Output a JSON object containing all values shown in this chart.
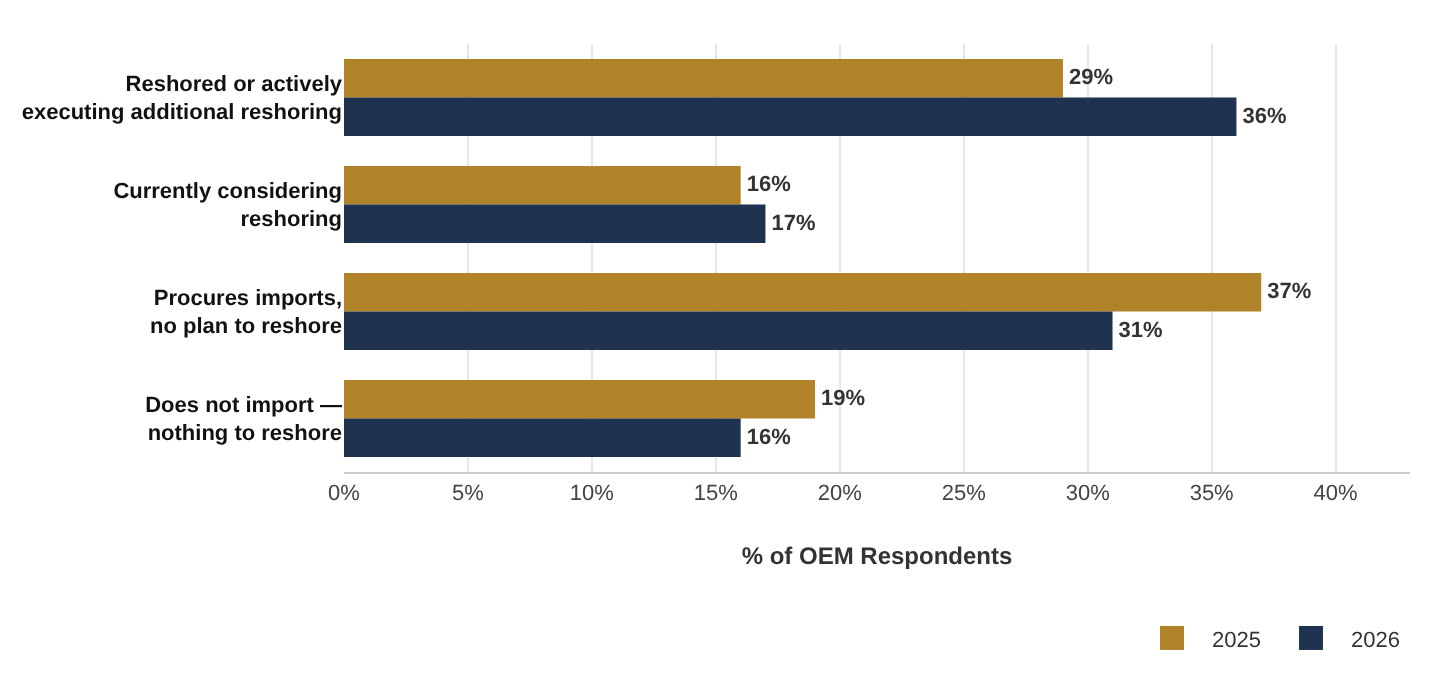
{
  "chart_data": {
    "type": "bar",
    "orientation": "horizontal",
    "xlabel": "% of OEM Respondents",
    "categories": [
      "Reshored or actively\nexecuting additional reshoring",
      "Currently considering\nreshoring",
      "Procures imports,\nno plan to reshore",
      "Does not import —\nnothing to reshore"
    ],
    "series": [
      {
        "name": "2025",
        "color": "#b08328",
        "values": [
          29,
          16,
          37,
          19
        ],
        "value_labels": [
          "29%",
          "16%",
          "37%",
          "19%"
        ]
      },
      {
        "name": "2026",
        "color": "#1f3250",
        "values": [
          36,
          17,
          31,
          16
        ],
        "value_labels": [
          "36%",
          "17%",
          "31%",
          "16%"
        ]
      }
    ],
    "xlim": [
      0,
      43
    ],
    "xticks": [
      {
        "value": 0,
        "label": "0%"
      },
      {
        "value": 5,
        "label": "5%"
      },
      {
        "value": 10,
        "label": "10%"
      },
      {
        "value": 15,
        "label": "15%"
      },
      {
        "value": 20,
        "label": "20%"
      },
      {
        "value": 25,
        "label": "25%"
      },
      {
        "value": 30,
        "label": "30%"
      },
      {
        "value": 35,
        "label": "35%"
      },
      {
        "value": 40,
        "label": "40%"
      }
    ],
    "grid": "x",
    "legend": "bottom right"
  }
}
